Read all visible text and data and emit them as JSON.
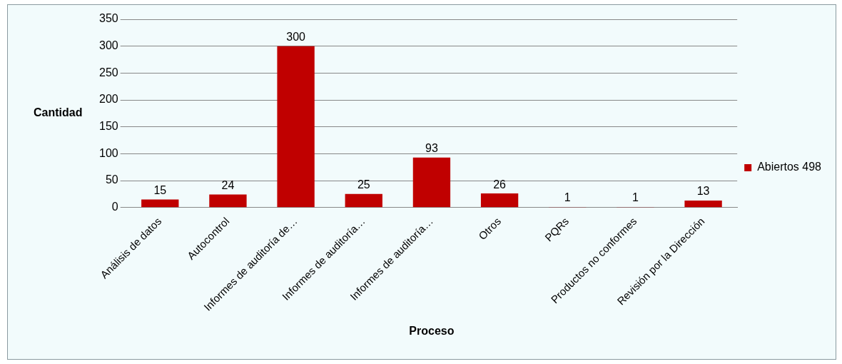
{
  "chart_data": {
    "type": "bar",
    "xlabel": "Proceso",
    "ylabel": "Cantidad",
    "categories": [
      "Análisis de datos",
      "Autocontrol",
      "Informes de auditoría de…",
      "Informes de auditoría…",
      "Informes de auditoría…",
      "Otros",
      "PQRs",
      "Productos no conformes",
      "Revisión por la Dirección"
    ],
    "series": [
      {
        "name": "Abiertos 498",
        "color": "#c00000",
        "values": [
          15,
          24,
          300,
          25,
          93,
          26,
          1,
          1,
          13
        ]
      }
    ],
    "ylim": [
      0,
      350
    ],
    "yticks": [
      0,
      50,
      100,
      150,
      200,
      250,
      300,
      350
    ],
    "grid": "y",
    "legend": "right",
    "data_labels": true
  }
}
